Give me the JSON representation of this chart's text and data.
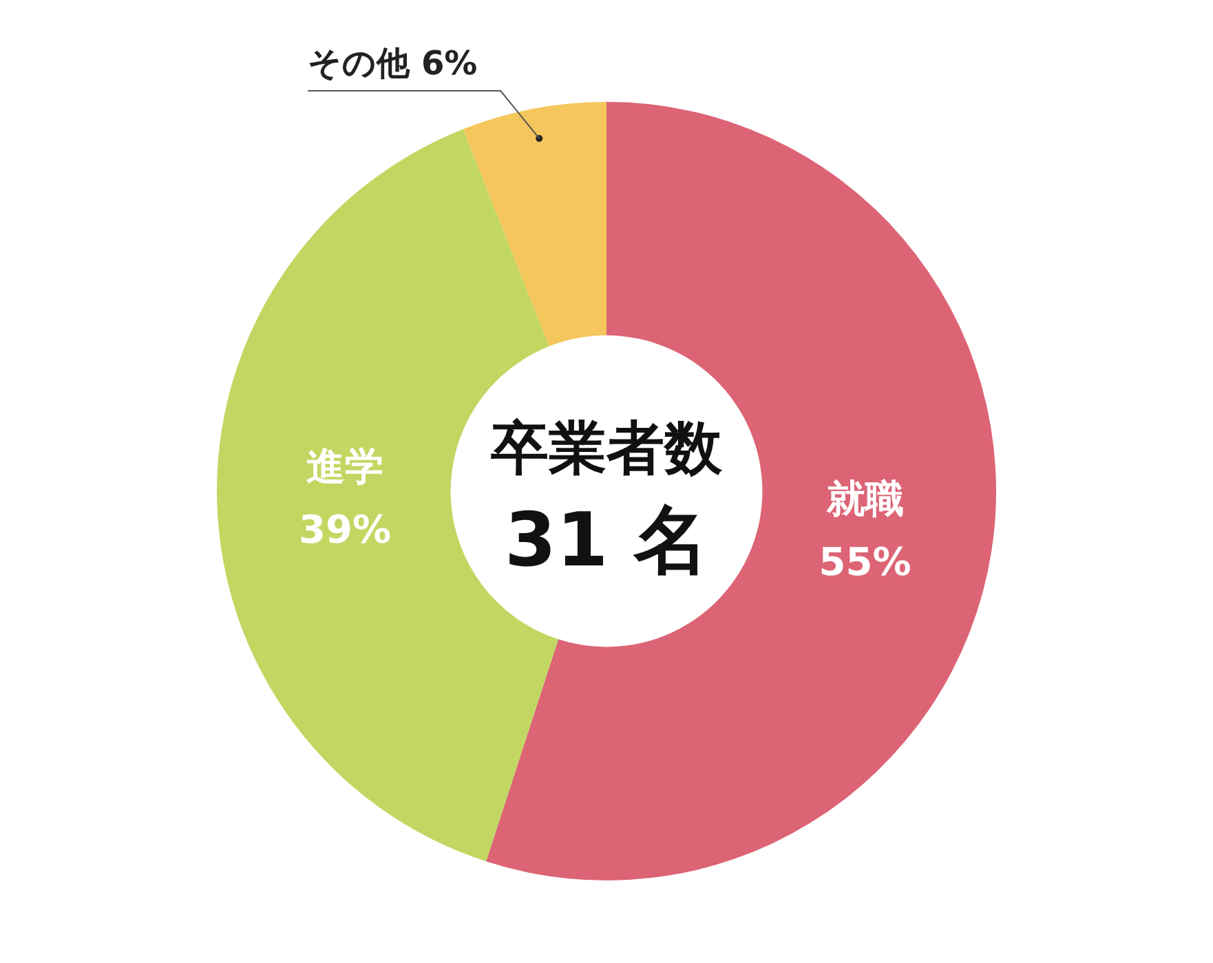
{
  "chart_data": {
    "type": "donut",
    "categories": [
      "就職",
      "進学",
      "その他"
    ],
    "values": [
      55,
      39,
      6
    ],
    "colors": [
      "#dc6475",
      "#c1d762",
      "#f4c65c"
    ],
    "value_labels": [
      "55%",
      "39%",
      "6%"
    ],
    "annotations": [
      "卒業者数",
      "31 名"
    ],
    "legend": false
  }
}
